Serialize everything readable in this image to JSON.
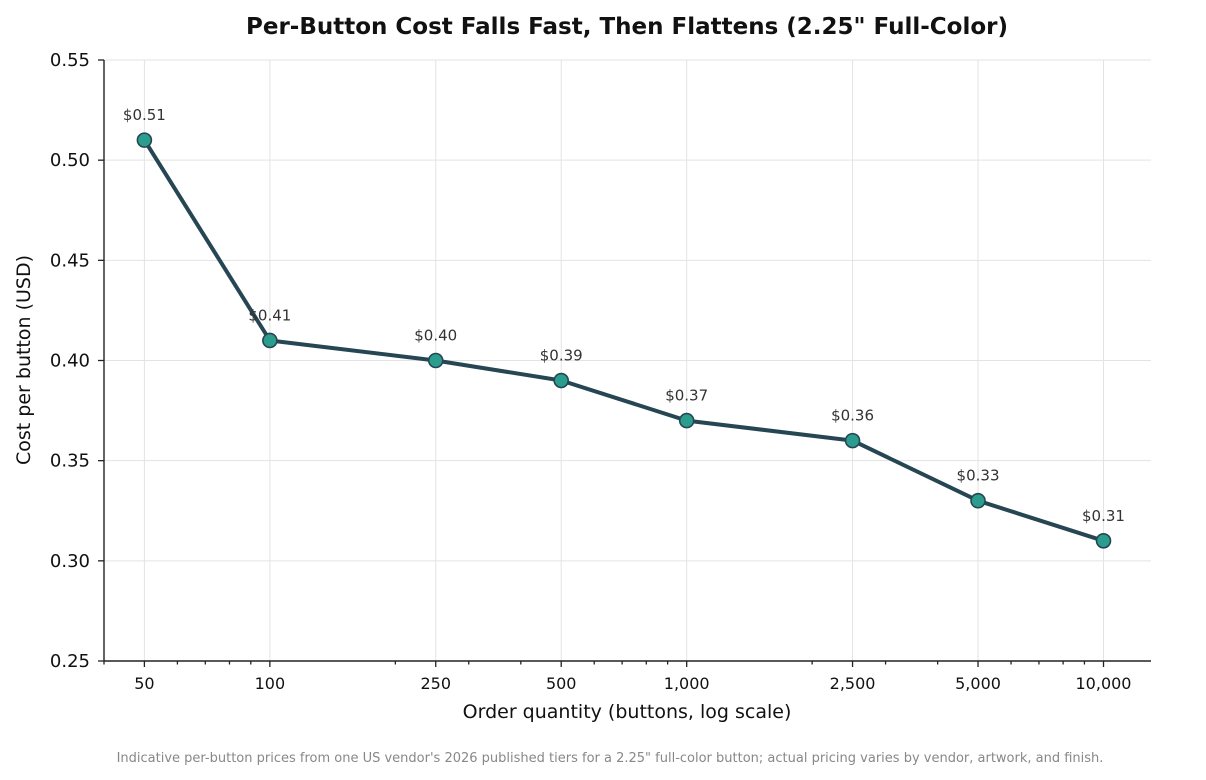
{
  "colors": {
    "line": "#264653",
    "marker_fill": "#2a9d8f",
    "marker_edge": "#264653"
  },
  "chart_data": {
    "type": "line",
    "title": "Per-Button Cost Falls Fast, Then Flattens (2.25\" Full-Color)",
    "xlabel": "Order quantity (buttons, log scale)",
    "ylabel": "Cost per button (USD)",
    "x_scale": "log",
    "xlim": [
      40,
      13000
    ],
    "ylim": [
      0.25,
      0.55
    ],
    "grid": true,
    "x": [
      50,
      100,
      250,
      500,
      1000,
      2500,
      5000,
      10000
    ],
    "y": [
      0.51,
      0.41,
      0.4,
      0.39,
      0.37,
      0.36,
      0.33,
      0.31
    ],
    "data_labels": [
      "$0.51",
      "$0.41",
      "$0.40",
      "$0.39",
      "$0.37",
      "$0.36",
      "$0.33",
      "$0.31"
    ],
    "x_tick_values": [
      50,
      100,
      250,
      500,
      1000,
      2500,
      5000,
      10000
    ],
    "x_tick_labels": [
      "50",
      "100",
      "250",
      "500",
      "1,000",
      "2,500",
      "5,000",
      "10,000"
    ],
    "y_tick_values": [
      0.25,
      0.3,
      0.35,
      0.4,
      0.45,
      0.5,
      0.55
    ],
    "y_tick_labels": [
      "0.25",
      "0.30",
      "0.35",
      "0.40",
      "0.45",
      "0.50",
      "0.55"
    ],
    "footnote": "Indicative per-button prices from one US vendor's 2026 published tiers for a 2.25\" full-color button; actual pricing varies by vendor, artwork, and finish."
  }
}
